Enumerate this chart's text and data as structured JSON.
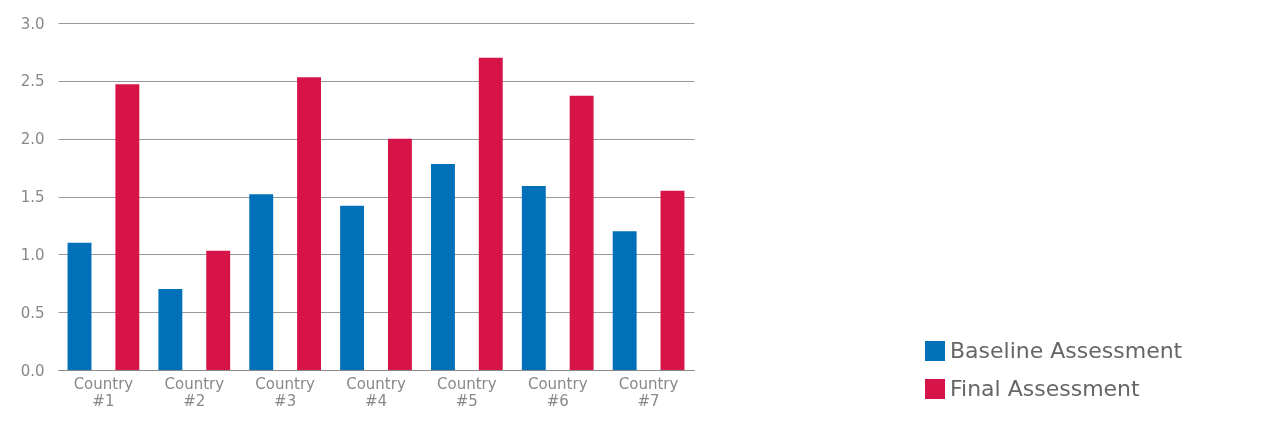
{
  "chart_data": {
    "type": "bar",
    "categories": [
      "Country #1",
      "Country #2",
      "Country #3",
      "Country #4",
      "Country #5",
      "Country #6",
      "Country #7"
    ],
    "series": [
      {
        "name": "Baseline Assessment",
        "color": "#0070b8",
        "values": [
          1.1,
          0.7,
          1.52,
          1.42,
          1.78,
          1.59,
          1.2
        ]
      },
      {
        "name": "Final Assessment",
        "color": "#d61447",
        "values": [
          2.47,
          1.03,
          2.53,
          2.0,
          2.7,
          2.37,
          1.55
        ]
      }
    ],
    "ylim": [
      0,
      3.0
    ],
    "yticks": [
      {
        "value": 0,
        "label": "0.0"
      },
      {
        "value": 0.5,
        "label": "0.5"
      },
      {
        "value": 1.0,
        "label": "1.0"
      },
      {
        "value": 1.5,
        "label": "1.5"
      },
      {
        "value": 2.0,
        "label": "2.0"
      },
      {
        "value": 2.5,
        "label": "2.5"
      },
      {
        "value": 3.0,
        "label": "3.0"
      }
    ],
    "grid": "y",
    "legend": "bottom right"
  }
}
